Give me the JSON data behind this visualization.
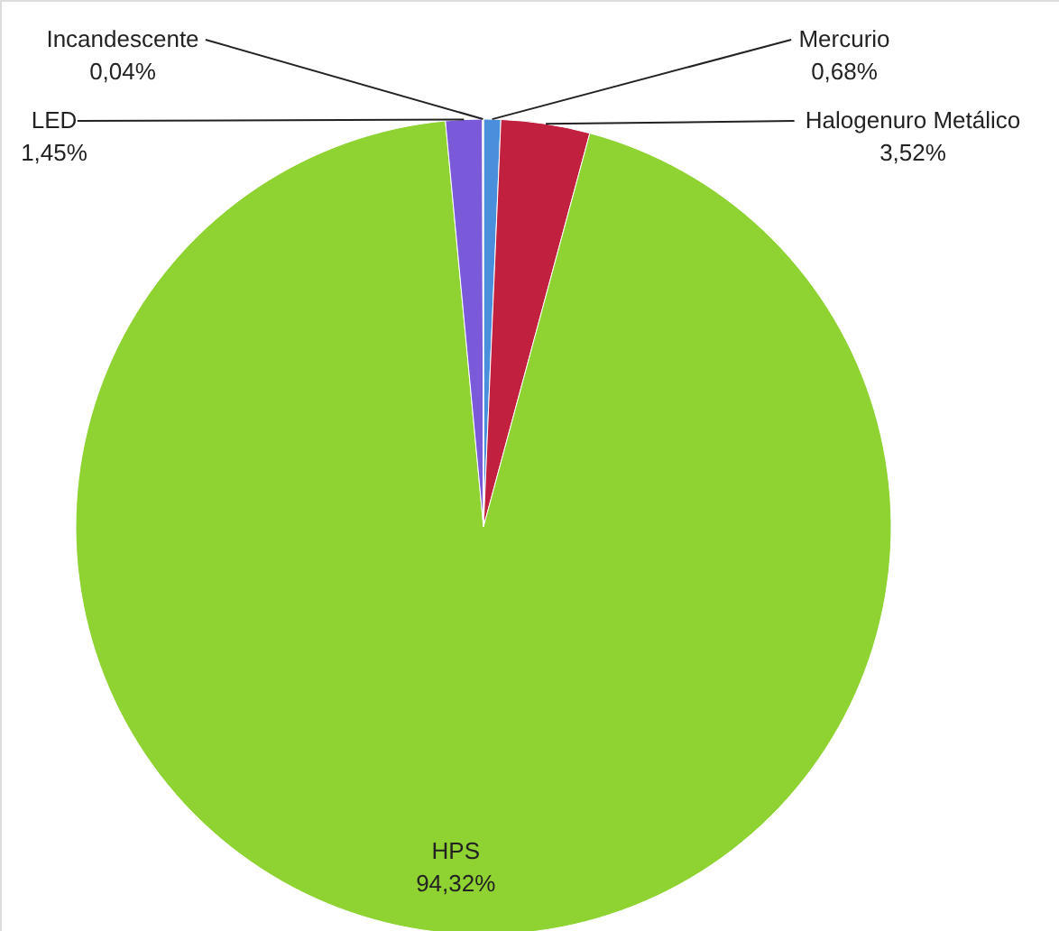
{
  "chart_data": {
    "type": "pie",
    "categories": [
      "Mercurio",
      "Halogenuro Metálico",
      "HPS",
      "LED",
      "Incandescente"
    ],
    "values": [
      0.68,
      3.52,
      94.32,
      1.45,
      0.04
    ],
    "value_labels": [
      "0,68%",
      "3,52%",
      "94,32%",
      "1,45%",
      "0,04%"
    ],
    "colors": [
      "#4a8fdc",
      "#c1203e",
      "#8fd333",
      "#7a5ad8",
      "#d9d9d9"
    ]
  }
}
